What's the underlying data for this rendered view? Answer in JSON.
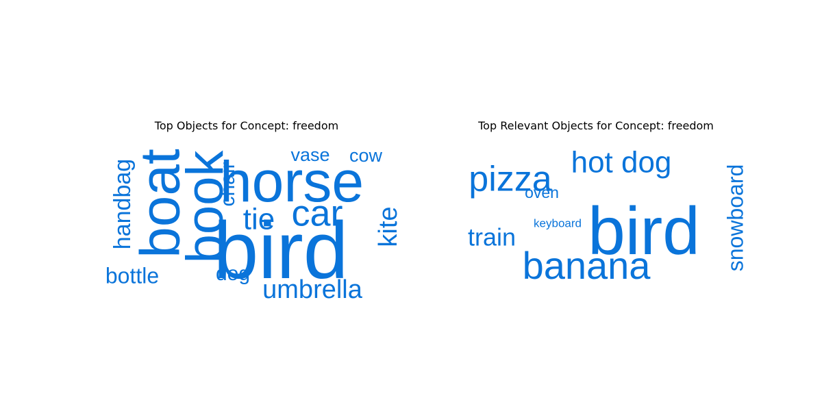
{
  "color": "#0a74da",
  "chart_data": [
    {
      "type": "wordcloud",
      "title": "Top Objects for Concept: freedom",
      "words": [
        {
          "text": "bird",
          "weight": 1.0,
          "rotated": false
        },
        {
          "text": "horse",
          "weight": 0.88,
          "rotated": false
        },
        {
          "text": "boat",
          "weight": 0.86,
          "rotated": true
        },
        {
          "text": "book",
          "weight": 0.82,
          "rotated": true
        },
        {
          "text": "car",
          "weight": 0.55,
          "rotated": false
        },
        {
          "text": "tie",
          "weight": 0.45,
          "rotated": false
        },
        {
          "text": "umbrella",
          "weight": 0.38,
          "rotated": false
        },
        {
          "text": "handbag",
          "weight": 0.34,
          "rotated": true
        },
        {
          "text": "kite",
          "weight": 0.34,
          "rotated": true
        },
        {
          "text": "bottle",
          "weight": 0.32,
          "rotated": false
        },
        {
          "text": "chair",
          "weight": 0.3,
          "rotated": true
        },
        {
          "text": "dog",
          "weight": 0.28,
          "rotated": false
        },
        {
          "text": "vase",
          "weight": 0.27,
          "rotated": false
        },
        {
          "text": "cow",
          "weight": 0.27,
          "rotated": false
        }
      ]
    },
    {
      "type": "wordcloud",
      "title": "Top Relevant Objects for Concept: freedom",
      "words": [
        {
          "text": "bird",
          "weight": 1.0,
          "rotated": false
        },
        {
          "text": "banana",
          "weight": 0.6,
          "rotated": false
        },
        {
          "text": "pizza",
          "weight": 0.58,
          "rotated": false
        },
        {
          "text": "hot dog",
          "weight": 0.5,
          "rotated": false
        },
        {
          "text": "train",
          "weight": 0.4,
          "rotated": false
        },
        {
          "text": "snowboard",
          "weight": 0.35,
          "rotated": true
        },
        {
          "text": "oven",
          "weight": 0.27,
          "rotated": false
        },
        {
          "text": "keyboard",
          "weight": 0.22,
          "rotated": false
        }
      ]
    }
  ]
}
